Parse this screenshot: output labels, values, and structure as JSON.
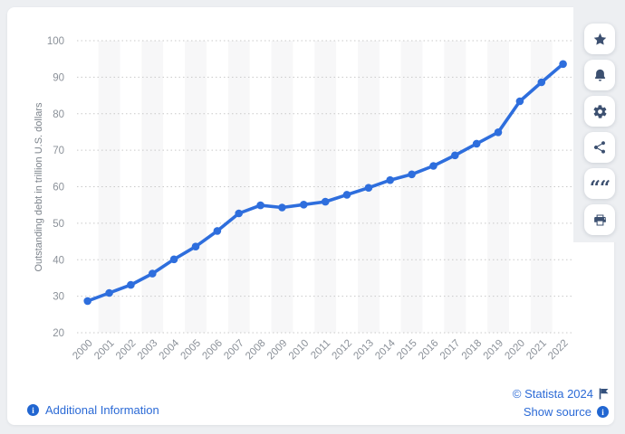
{
  "page": {
    "background": "#edeff2",
    "card_background": "#ffffff"
  },
  "chart_data": {
    "type": "line",
    "title": "",
    "xlabel": "",
    "ylabel": "Outstanding debt in trillion U.S. dollars",
    "categories": [
      "2000",
      "2001",
      "2002",
      "2003",
      "2004",
      "2005",
      "2006",
      "2007",
      "2008",
      "2009",
      "2010",
      "2011",
      "2012",
      "2013",
      "2014",
      "2015",
      "2016",
      "2017",
      "2018",
      "2019",
      "2020",
      "2021",
      "2022"
    ],
    "values": [
      28.7,
      30.9,
      33.1,
      36.2,
      40.1,
      43.6,
      47.9,
      52.7,
      54.9,
      54.3,
      55.1,
      55.9,
      57.8,
      59.7,
      61.8,
      63.4,
      65.7,
      68.6,
      71.8,
      74.9,
      83.4,
      88.6,
      93.6
    ],
    "ylim": [
      20,
      100
    ],
    "yticks": [
      20,
      30,
      40,
      50,
      60,
      70,
      80,
      90,
      100
    ],
    "grid": "horizontal-dotted",
    "legend": "none",
    "line_color": "#2e6edd",
    "marker": "circle",
    "stripe_color": "#f7f7f8",
    "gridline_color": "#c9c9c9",
    "tick_label_color": "#8b9199",
    "axis_title_color": "#7c838b"
  },
  "toolbar": {
    "buttons": [
      {
        "name": "favorite",
        "icon": "star-icon"
      },
      {
        "name": "alert",
        "icon": "bell-icon"
      },
      {
        "name": "settings",
        "icon": "gear-icon"
      },
      {
        "name": "share",
        "icon": "share-icon"
      },
      {
        "name": "cite",
        "icon": "quote-icon"
      },
      {
        "name": "print",
        "icon": "printer-icon"
      }
    ]
  },
  "footer": {
    "additional_info_label": "Additional Information",
    "copyright_label": "© Statista 2024",
    "show_source_label": "Show source",
    "link_color": "#2b6ad6"
  }
}
